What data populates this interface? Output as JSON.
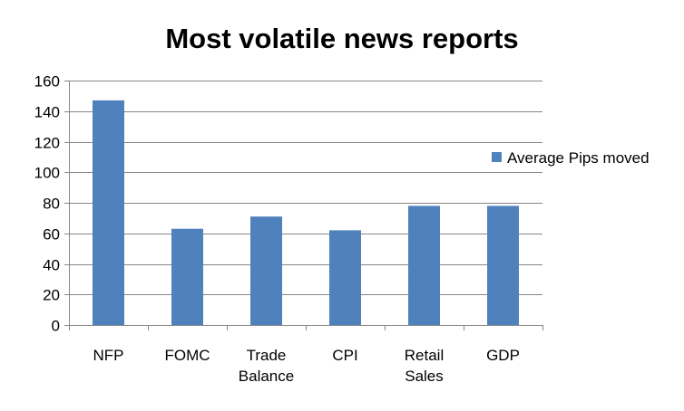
{
  "chart_data": {
    "type": "bar",
    "title": "Most volatile news reports",
    "xlabel": "",
    "ylabel": "",
    "categories": [
      [
        "NFP"
      ],
      [
        "FOMC"
      ],
      [
        "Trade",
        "Balance"
      ],
      [
        "CPI"
      ],
      [
        "Retail",
        "Sales"
      ],
      [
        "GDP"
      ]
    ],
    "series": [
      {
        "name": "Average Pips moved",
        "values": [
          147,
          63,
          71,
          62,
          78,
          78
        ],
        "color": "#4F81BD"
      }
    ],
    "ylim": [
      0,
      160
    ],
    "yticks": [
      0,
      20,
      40,
      60,
      80,
      100,
      120,
      140,
      160
    ],
    "grid": true,
    "legend_position": "right"
  }
}
